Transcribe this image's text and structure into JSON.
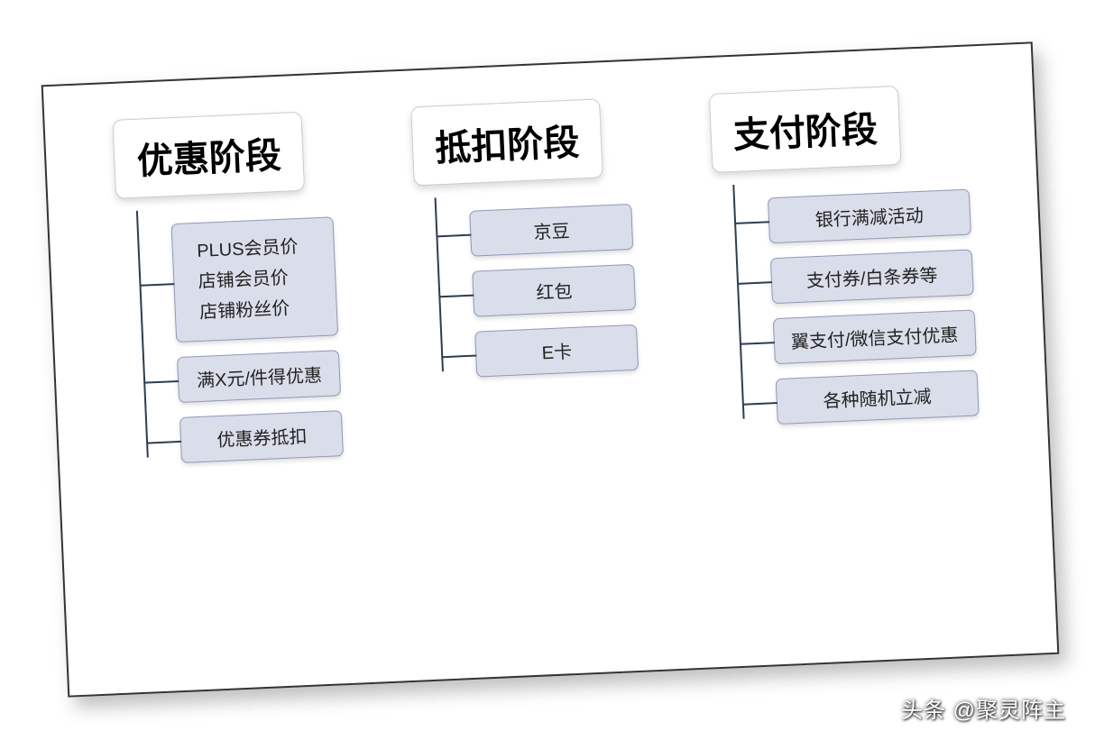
{
  "diagram": {
    "type": "tree",
    "rotation_deg": -2.5,
    "background_color": "#ffffff",
    "frame_border_color": "#333333",
    "shadow_color": "rgba(0,0,0,0.25)",
    "header_style": {
      "bg": "#ffffff",
      "border": "#cccccc",
      "radius": 10,
      "font_size": 40,
      "font_weight": 700,
      "text_color": "#000000"
    },
    "child_style": {
      "bg": "#dadeea",
      "border": "#8f99b8",
      "radius": 7,
      "font_size": 20,
      "text_color": "#222222"
    },
    "connector_color": "#2c3e50",
    "stages": [
      {
        "title": "优惠阶段",
        "children": [
          {
            "lines": [
              "PLUS会员价",
              "店铺会员价",
              "店铺粉丝价"
            ]
          },
          {
            "lines": [
              "满X元/件得优惠"
            ]
          },
          {
            "lines": [
              "优惠券抵扣"
            ]
          }
        ]
      },
      {
        "title": "抵扣阶段",
        "children": [
          {
            "lines": [
              "京豆"
            ]
          },
          {
            "lines": [
              "红包"
            ]
          },
          {
            "lines": [
              "E卡"
            ]
          }
        ]
      },
      {
        "title": "支付阶段",
        "children": [
          {
            "lines": [
              "银行满减活动"
            ]
          },
          {
            "lines": [
              "支付券/白条券等"
            ]
          },
          {
            "lines": [
              "翼支付/微信支付优惠"
            ]
          },
          {
            "lines": [
              "各种随机立减"
            ]
          }
        ]
      }
    ]
  },
  "watermark": "头条 @聚灵阵主"
}
